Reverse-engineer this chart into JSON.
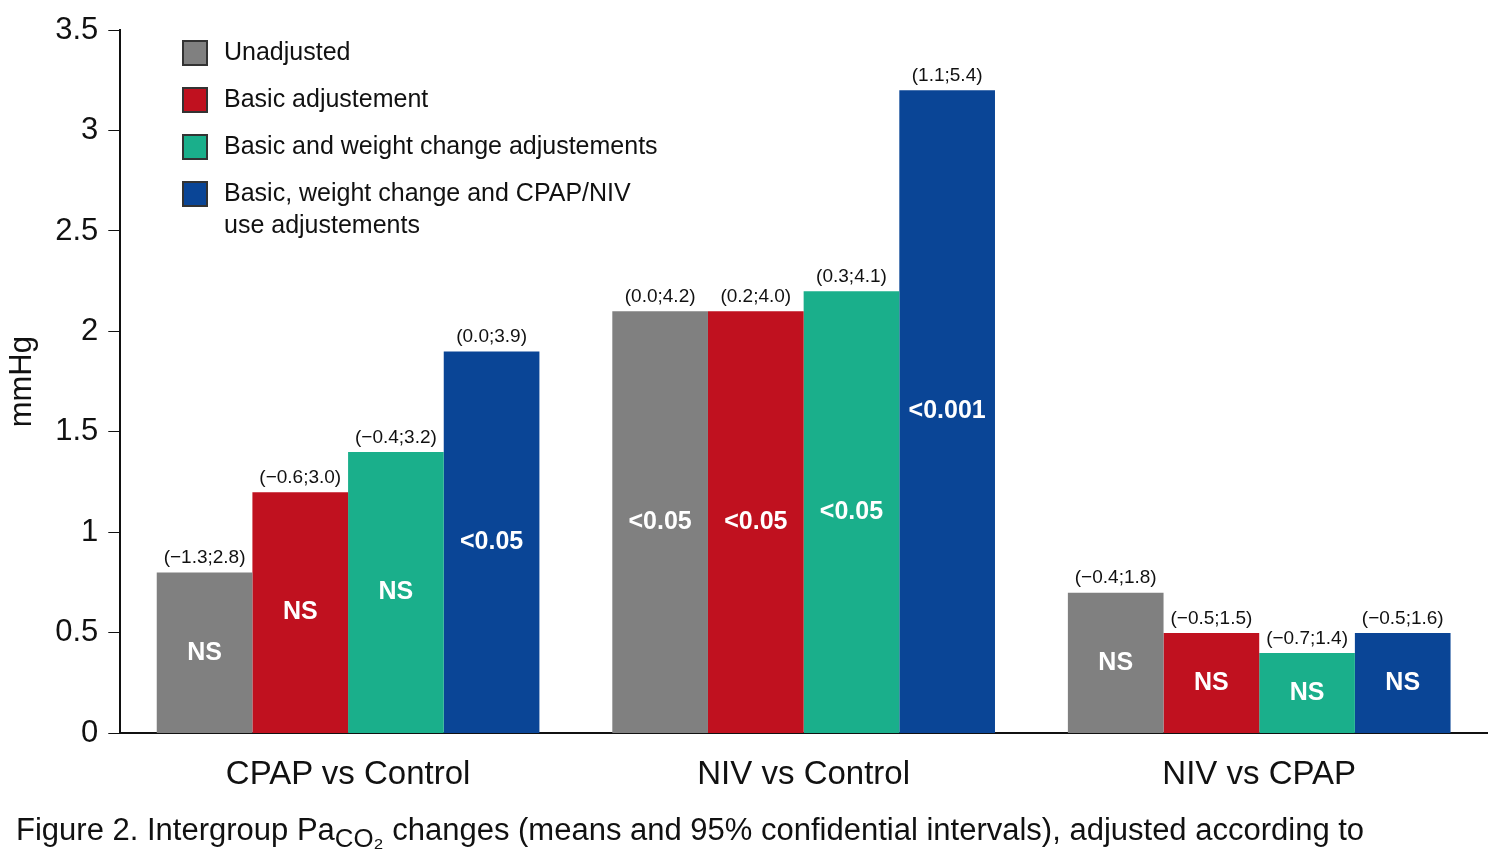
{
  "chart_data": {
    "type": "bar",
    "ylabel": "mmHg",
    "categories": [
      "CPAP vs Control",
      "NIV vs Control",
      "NIV vs CPAP"
    ],
    "series": [
      {
        "name": "Unadjusted",
        "color": "#808080",
        "values": [
          0.8,
          2.1,
          0.7
        ],
        "value_labels": [
          "(−1.3;2.8)",
          "(0.0;4.2)",
          "(−0.4;1.8)"
        ]
      },
      {
        "name": "Basic adjustement",
        "color": "#c0111f",
        "values": [
          1.2,
          2.1,
          0.5
        ],
        "value_labels": [
          "(−0.6;3.0)",
          "(0.2;4.0)",
          "(−0.5;1.5)"
        ]
      },
      {
        "name": "Basic and weight change adjustements",
        "color": "#1aaf8b",
        "values": [
          1.4,
          2.2,
          0.4
        ],
        "value_labels": [
          "(−0.4;3.2)",
          "(0.3;4.1)",
          "(−0.7;1.4)"
        ]
      },
      {
        "name": "Basic, weight change and CPAP/NIV use adjustements",
        "color": "#0a4596",
        "values": [
          1.9,
          3.2,
          0.5
        ],
        "value_labels": [
          "(0.0;3.9)",
          "(1.1;5.4)",
          "(−0.5;1.6)"
        ]
      }
    ],
    "ylim": [
      0,
      3.5
    ],
    "yticks": [
      0,
      0.5,
      1,
      1.5,
      2,
      2.5,
      3,
      3.5
    ],
    "grid": false,
    "legend": "top left",
    "annotations": [
      "NS",
      "<0.05",
      "NS",
      "NS",
      "<0.05",
      "NS",
      "NS",
      "<0.05",
      "NS",
      "<0.05",
      "<0.001",
      "NS",
      "Figure 2. Intergroup Pa$_{CO₂}$ changes (means and 95% confidential intervals), adjusted according to"
    ]
  }
}
